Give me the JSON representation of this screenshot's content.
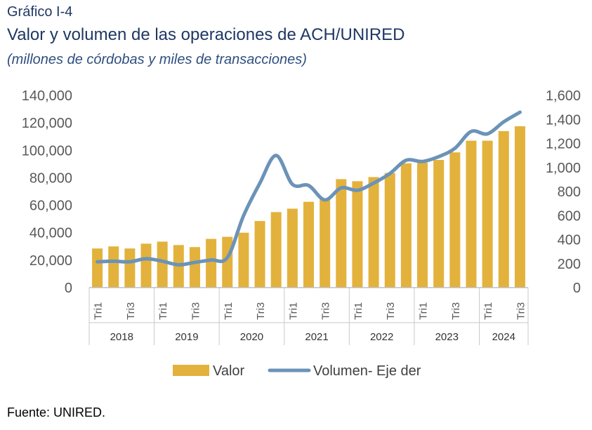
{
  "header": {
    "label": "Gráfico I-4",
    "title": "Valor y volumen de las operaciones de ACH/UNIRED",
    "subtitle": "(millones de córdobas y miles de transacciones)"
  },
  "footer": {
    "source": "Fuente: UNIRED."
  },
  "colors": {
    "bar": "#e3b23c",
    "line": "#6b93b8",
    "text": "#595959",
    "title": "#1f3864"
  },
  "chart_data": {
    "type": "bar",
    "categories": [
      "2018 Tri1",
      "2018 Tri2",
      "2018 Tri3",
      "2018 Tri4",
      "2019 Tri1",
      "2019 Tri2",
      "2019 Tri3",
      "2019 Tri4",
      "2020 Tri1",
      "2020 Tri2",
      "2020 Tri3",
      "2020 Tri4",
      "2021 Tri1",
      "2021 Tri2",
      "2021 Tri3",
      "2021 Tri4",
      "2022 Tri1",
      "2022 Tri2",
      "2022 Tri3",
      "2022 Tri4",
      "2023 Tri1",
      "2023 Tri2",
      "2023 Tri3",
      "2023 Tri4",
      "2024 Tri1",
      "2024 Tri2",
      "2024 Tri3"
    ],
    "x_tick_labels": [
      "Tri1",
      "",
      "Tri3",
      "",
      "Tri1",
      "",
      "Tri3",
      "",
      "Tri1",
      "",
      "Tri3",
      "",
      "Tri1",
      "",
      "Tri3",
      "",
      "Tri1",
      "",
      "Tri3",
      "",
      "Tri1",
      "",
      "Tri3",
      "",
      "Tri1",
      "",
      "Tri3"
    ],
    "years": [
      "2018",
      "2019",
      "2020",
      "2021",
      "2022",
      "2023",
      "2024"
    ],
    "series": [
      {
        "name": "Valor",
        "kind": "bar",
        "axis": "left",
        "values": [
          28500,
          30000,
          28500,
          32000,
          33500,
          31000,
          29500,
          35500,
          37000,
          40000,
          48500,
          55000,
          57500,
          62500,
          65000,
          79000,
          77500,
          80500,
          83500,
          90500,
          91000,
          93000,
          98500,
          107000,
          107000,
          114000,
          117500
        ]
      },
      {
        "name": "Volumen- Eje der",
        "kind": "line",
        "axis": "right",
        "values": [
          215,
          220,
          215,
          240,
          220,
          190,
          210,
          230,
          250,
          600,
          870,
          1100,
          860,
          850,
          730,
          830,
          810,
          870,
          950,
          1060,
          1050,
          1090,
          1160,
          1300,
          1280,
          1380,
          1460
        ]
      }
    ],
    "y_left": {
      "min": 0,
      "max": 140000,
      "ticks": [
        "0",
        "20,000",
        "40,000",
        "60,000",
        "80,000",
        "100,000",
        "120,000",
        "140,000"
      ]
    },
    "y_right": {
      "min": 0,
      "max": 1600,
      "ticks": [
        "0",
        "200",
        "400",
        "600",
        "800",
        "1,000",
        "1,200",
        "1,400",
        "1,600"
      ]
    },
    "legend": {
      "position": "bottom"
    },
    "grid": false
  }
}
